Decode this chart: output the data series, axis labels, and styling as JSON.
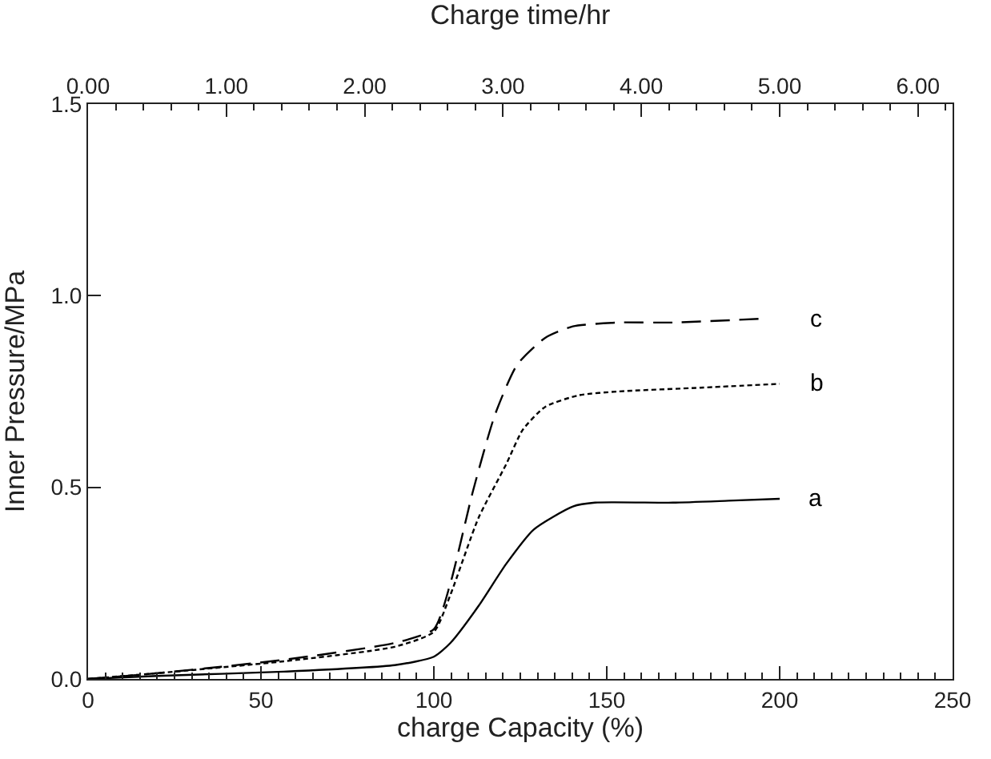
{
  "chart_data": {
    "type": "line",
    "xlabel": "charge Capacity (%)",
    "ylabel": "Inner Pressure/MPa",
    "x2label": "Charge time/hr",
    "xlim": [
      0,
      250
    ],
    "xticks": [
      0,
      50,
      100,
      150,
      200,
      250
    ],
    "x2lim": [
      0,
      6.25
    ],
    "x2ticks": [
      {
        "value": 0,
        "label": "0.00"
      },
      {
        "value": 1,
        "label": "1.00"
      },
      {
        "value": 2,
        "label": "2.00"
      },
      {
        "value": 3,
        "label": "3.00"
      },
      {
        "value": 4,
        "label": "4.00"
      },
      {
        "value": 5,
        "label": "5.00"
      },
      {
        "value": 6,
        "label": "6.00"
      }
    ],
    "ylim": [
      0,
      1.5
    ],
    "yticks": [
      {
        "value": 0,
        "label": "0.0"
      },
      {
        "value": 0.5,
        "label": "0.5"
      },
      {
        "value": 1,
        "label": "1.0"
      },
      {
        "value": 1.5,
        "label": "1.5"
      }
    ],
    "grid": false,
    "legend": false,
    "marker": "none",
    "series": [
      {
        "name": "a",
        "color": "#000000",
        "line_style": "solid",
        "x": [
          0,
          20,
          56.6,
          88.7,
          100,
          104.8,
          112.9,
          120.9,
          128.9,
          140.2,
          146.6,
          169.1,
          185.2,
          200
        ],
        "values": [
          0,
          0.008,
          0.019,
          0.036,
          0.058,
          0.094,
          0.19,
          0.3,
          0.39,
          0.45,
          0.46,
          0.46,
          0.465,
          0.47
        ]
      },
      {
        "name": "b",
        "color": "#000000",
        "line_style": "dotted",
        "x": [
          0,
          20,
          56.6,
          88.7,
          100,
          104.8,
          112.9,
          120.9,
          125.7,
          132.2,
          141.8,
          153.1,
          177.2,
          200
        ],
        "values": [
          0,
          0.015,
          0.046,
          0.084,
          0.123,
          0.22,
          0.42,
          0.56,
          0.65,
          0.71,
          0.74,
          0.75,
          0.76,
          0.77
        ]
      },
      {
        "name": "c",
        "color": "#000000",
        "line_style": "dashed",
        "x": [
          0,
          20,
          56.6,
          88.7,
          100,
          104.8,
          111.3,
          117.7,
          124.1,
          132.2,
          140.2,
          153.1,
          169.1,
          194.9
        ],
        "values": [
          0,
          0.015,
          0.05,
          0.094,
          0.13,
          0.25,
          0.49,
          0.69,
          0.82,
          0.89,
          0.92,
          0.93,
          0.93,
          0.94
        ]
      }
    ]
  }
}
